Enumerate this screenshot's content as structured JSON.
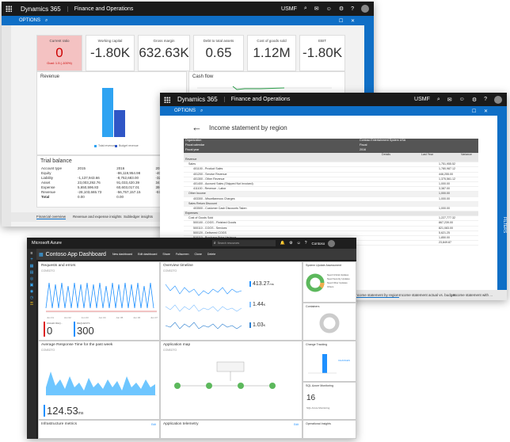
{
  "window1": {
    "brand": "Dynamics 365",
    "app": "Finance and Operations",
    "company": "USMF",
    "options": "OPTIONS",
    "filters": "FILTERS",
    "kpis": [
      {
        "label": "Current ratio",
        "value": "0",
        "sub": "Goal: 1.5 (-100%)",
        "alert": true
      },
      {
        "label": "Working capital",
        "value": "-1.80K"
      },
      {
        "label": "Gross margin",
        "value": "632.63K"
      },
      {
        "label": "Debt to total assets",
        "value": "0.65"
      },
      {
        "label": "Cost of goods sold",
        "value": "1.12M"
      },
      {
        "label": "EBIT",
        "value": "-1.80K"
      }
    ],
    "revenue_title": "Revenue",
    "revenue_chart": {
      "type": "bar",
      "series": [
        {
          "name": "Total revenue",
          "values": [
            1.0
          ]
        },
        {
          "name": "Budget revenue",
          "values": [
            0.55
          ]
        }
      ]
    },
    "cashflow_title": "Cash flow",
    "trial_title": "Trial balance",
    "trial_headers": [
      "Account type",
      "2015",
      "2016",
      "2017"
    ],
    "trial_rows": [
      [
        "Equity",
        "",
        "-86,119,954.98",
        "-40,21"
      ],
      [
        "Liability",
        "-1,137,943.66",
        "-8,752,683.00",
        "-32,5"
      ],
      [
        "Asset",
        "23,003,292.76",
        "91,033,420.39",
        "34,1"
      ],
      [
        "Expense",
        "5,650,596.83",
        "60,603,017.01",
        "39,4"
      ],
      [
        "Revenue",
        "-28,103,665.73",
        "-56,757,157.15",
        "-57,1"
      ],
      [
        "Total",
        "0.00",
        "0.00",
        ""
      ]
    ],
    "tabs": [
      "Financial overview",
      "Revenue and expense insights",
      "Subledger insights"
    ]
  },
  "window2": {
    "brand": "Dynamics 365",
    "app": "Finance and Operations",
    "company": "USMF",
    "options": "OPTIONS",
    "filters": "FILTERS",
    "title": "Income statement by region",
    "org_label": "Organization",
    "org_value": "Contoso Entertainment System USA",
    "calendar_label": "Fiscal calendar",
    "calendar_value": "Fiscal",
    "year_label": "Fiscal year",
    "year_value": "2016",
    "col_headers": [
      "Details",
      "Last Year",
      "Variance"
    ],
    "section_revenue": "Revenue",
    "section_expense": "Expenses",
    "lines": [
      [
        "Sales",
        "1,751,955.52"
      ],
      [
        "401100 - Product Sales",
        "1,780,987.12"
      ],
      [
        "401200 - Service Revenue",
        "446,255.00"
      ],
      [
        "401300 - Other Revenue",
        "1,375,561.12"
      ],
      [
        "401400 - Accrued Sales (Shipped Not Invoiced)",
        "1,000.00"
      ],
      [
        "411100 - Revenue - Labor",
        "3,387.00"
      ],
      [
        "Other Income",
        "1,000.00"
      ],
      [
        "403300 - Miscellaneous Charges",
        "1,000.00"
      ],
      [
        "Sales Return Discount",
        ""
      ],
      [
        "403500 - Customer Cash Discounts Taken",
        "1,000.00"
      ]
    ],
    "expense_lines": [
      [
        "Cost of Goods Sold",
        "1,227,777.32"
      ],
      [
        "500100 - COGS - Finished Goods",
        "867,239.00"
      ],
      [
        "500110 - COGS - Services",
        "821,083.00"
      ],
      [
        "500120 - Delivered COGS",
        "5,621.25"
      ],
      [
        "510110 - Purchase Price Variance",
        "1,850.00"
      ],
      [
        "510120 - Inventory Cost Revaluation",
        "23,849.87"
      ]
    ],
    "bottom_tabs": [
      "Income statement by region",
      "Income statement actual vs. budget",
      "Income statement with ..."
    ]
  },
  "azure": {
    "brand": "Microsoft Azure",
    "search_placeholder": "Search resources",
    "user": "Contoso",
    "user_sub": "ENVIRONMENT",
    "dashboard_title": "Contoso App Dashboard",
    "toolbar": [
      "New dashboard",
      "Edit dashboard",
      "Share",
      "Fullscreen",
      "Clone",
      "Delete"
    ],
    "requests_title": "Requests and errors",
    "requests_sub": "CONSOTO",
    "failed_label": "FAILED REQ...",
    "failed_value": "0",
    "requests_label": "REQUESTS",
    "requests_value": "300",
    "overview_title": "Overview timeline",
    "overview_sub": "CONSOTO",
    "ov_val1": "413.27",
    "ov_val1_unit": "ms",
    "ov_val2": "1.44",
    "ov_val2_unit": "K",
    "ov_val3": "1.03",
    "ov_val3_unit": "K",
    "sys_title": "System Update Assessment",
    "sys_items": [
      "Need Critical Updates",
      "Need Security Updates",
      "Need Other Updates",
      "Others"
    ],
    "containers_title": "Containers",
    "response_title": "Average Response Time for the past week",
    "response_sub": "CONSOTO",
    "response_value": "124.53",
    "response_unit": "ms",
    "appmap_title": "Application map",
    "appmap_sub": "CONSOTO",
    "change_title": "Change Tracking",
    "change_badge": "CHANGES",
    "sql_title": "SQL Azure Monitoring",
    "sql_value": "16",
    "sql_label": "SQL Azure Monitoring",
    "infra_title": "Infrastructure metrics",
    "telemetry_title": "Application telemetry",
    "ops_title": "Operational Insights",
    "edit_label": "Edit",
    "req_axis": [
      "Jun 01",
      "Jun 02",
      "Jun 03",
      "Jun 04",
      "Jun 05",
      "Jun 06",
      "Jun 07"
    ]
  }
}
